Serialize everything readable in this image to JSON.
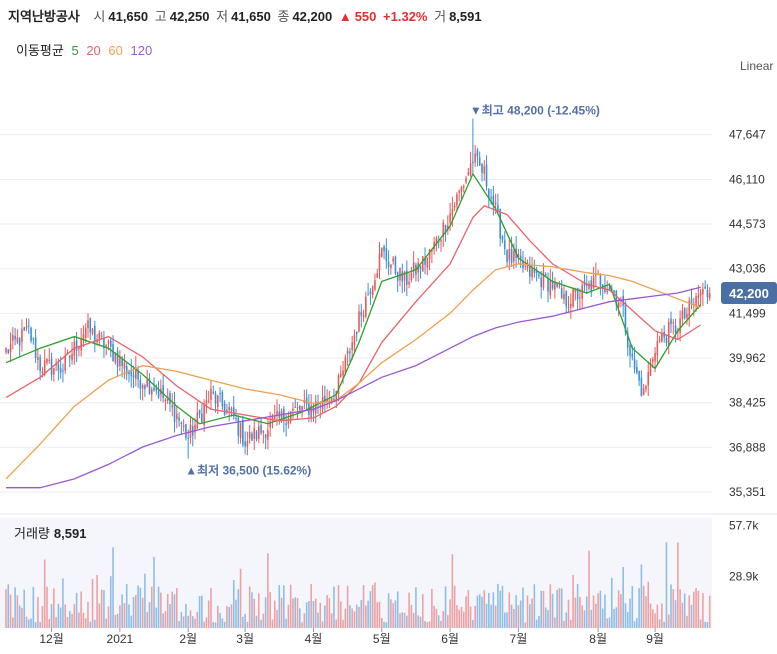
{
  "header": {
    "name": "지역난방공사",
    "open_label": "시",
    "open": "41,650",
    "high_label": "고",
    "high": "42,250",
    "low_label": "저",
    "low": "41,650",
    "close_label": "종",
    "close": "42,200",
    "change_arrow": "▲",
    "change": "550",
    "change_pct": "+1.32%",
    "volume_label": "거",
    "volume": "8,591"
  },
  "ma_legend": {
    "label": "이동평균",
    "periods": [
      {
        "label": "5",
        "color": "#2ca02c"
      },
      {
        "label": "20",
        "color": "#e8636b"
      },
      {
        "label": "60",
        "color": "#f0a050"
      },
      {
        "label": "120",
        "color": "#9b59d0"
      }
    ]
  },
  "scale_label": "Linear",
  "colors": {
    "up": "#e55b5b",
    "down": "#3b8fd6",
    "annotation": "#5470a8",
    "current_badge": "#4a6fa5"
  },
  "chart_data": {
    "type": "candlestick",
    "ylim": [
      34800,
      49600
    ],
    "y_ticks": [
      {
        "value": 47647,
        "label": "47,647"
      },
      {
        "value": 46110,
        "label": "46,110"
      },
      {
        "value": 44573,
        "label": "44,573"
      },
      {
        "value": 43036,
        "label": "43,036"
      },
      {
        "value": 41499,
        "label": "41,499"
      },
      {
        "value": 39962,
        "label": "39,962"
      },
      {
        "value": 38425,
        "label": "38,425"
      },
      {
        "value": 36888,
        "label": "36,888"
      },
      {
        "value": 35351,
        "label": "35,351"
      }
    ],
    "x_ticks": [
      {
        "week": 4,
        "label": "12월"
      },
      {
        "week": 10,
        "label": "2021"
      },
      {
        "week": 16,
        "label": "2월"
      },
      {
        "week": 21,
        "label": "3월"
      },
      {
        "week": 27,
        "label": "4월"
      },
      {
        "week": 33,
        "label": "5월"
      },
      {
        "week": 39,
        "label": "6월"
      },
      {
        "week": 45,
        "label": "7월"
      },
      {
        "week": 52,
        "label": "8월"
      },
      {
        "week": 57,
        "label": "9월"
      }
    ],
    "price_path": [
      [
        0,
        40200
      ],
      [
        2,
        40900
      ],
      [
        3,
        39700
      ],
      [
        5,
        39600
      ],
      [
        7,
        41000
      ],
      [
        9,
        40300
      ],
      [
        11,
        39400
      ],
      [
        13,
        39000
      ],
      [
        15,
        38000
      ],
      [
        16,
        37200
      ],
      [
        18,
        38700
      ],
      [
        20,
        37900
      ],
      [
        21,
        37100
      ],
      [
        23,
        37600
      ],
      [
        25,
        38100
      ],
      [
        27,
        38300
      ],
      [
        29,
        38800
      ],
      [
        30,
        40000
      ],
      [
        31,
        41300
      ],
      [
        33,
        43600
      ],
      [
        35,
        42600
      ],
      [
        37,
        43400
      ],
      [
        38,
        44100
      ],
      [
        40,
        45800
      ],
      [
        41,
        46800
      ],
      [
        42,
        46300
      ],
      [
        43,
        45000
      ],
      [
        44,
        43500
      ],
      [
        46,
        42900
      ],
      [
        48,
        42500
      ],
      [
        49,
        41900
      ],
      [
        51,
        42300
      ],
      [
        52,
        42700
      ],
      [
        53,
        42400
      ],
      [
        54,
        41900
      ],
      [
        55,
        39800
      ],
      [
        56,
        38700
      ],
      [
        57,
        40400
      ],
      [
        58,
        40800
      ],
      [
        59,
        41100
      ],
      [
        60,
        41600
      ],
      [
        61,
        42200
      ]
    ],
    "annotations": {
      "high": {
        "text": "▼최고 48,200 (-12.45%)",
        "week": 41,
        "value": 48200
      },
      "low": {
        "text": "▲최저 36,500 (15.62%)",
        "week": 16,
        "value": 36500
      }
    },
    "current_price": {
      "value": 42200,
      "label": "42,200"
    },
    "moving_averages": [
      {
        "period": "5",
        "color": "#2ca02c",
        "points": [
          [
            0,
            39800
          ],
          [
            3,
            40300
          ],
          [
            6,
            40700
          ],
          [
            9,
            40300
          ],
          [
            12,
            39400
          ],
          [
            15,
            38300
          ],
          [
            17,
            37700
          ],
          [
            20,
            38000
          ],
          [
            23,
            37700
          ],
          [
            26,
            38100
          ],
          [
            29,
            38700
          ],
          [
            31,
            40500
          ],
          [
            33,
            42600
          ],
          [
            36,
            43000
          ],
          [
            39,
            44500
          ],
          [
            41,
            46300
          ],
          [
            43,
            45100
          ],
          [
            45,
            43400
          ],
          [
            48,
            42600
          ],
          [
            51,
            42200
          ],
          [
            53,
            42500
          ],
          [
            55,
            40300
          ],
          [
            57,
            39600
          ],
          [
            59,
            40900
          ],
          [
            61,
            41800
          ]
        ]
      },
      {
        "period": "20",
        "color": "#e8636b",
        "points": [
          [
            0,
            38600
          ],
          [
            3,
            39300
          ],
          [
            6,
            40300
          ],
          [
            9,
            40700
          ],
          [
            12,
            40000
          ],
          [
            15,
            39000
          ],
          [
            18,
            38200
          ],
          [
            21,
            38000
          ],
          [
            24,
            37800
          ],
          [
            27,
            37900
          ],
          [
            29,
            38300
          ],
          [
            31,
            39100
          ],
          [
            33,
            40500
          ],
          [
            36,
            41900
          ],
          [
            39,
            43200
          ],
          [
            41,
            44800
          ],
          [
            42,
            45200
          ],
          [
            44,
            44900
          ],
          [
            46,
            44000
          ],
          [
            48,
            43200
          ],
          [
            51,
            42500
          ],
          [
            53,
            42300
          ],
          [
            55,
            41600
          ],
          [
            57,
            40900
          ],
          [
            59,
            40600
          ],
          [
            61,
            41100
          ]
        ]
      },
      {
        "period": "60",
        "color": "#f0a050",
        "points": [
          [
            0,
            35800
          ],
          [
            3,
            37000
          ],
          [
            6,
            38300
          ],
          [
            9,
            39200
          ],
          [
            12,
            39700
          ],
          [
            15,
            39500
          ],
          [
            18,
            39200
          ],
          [
            21,
            38900
          ],
          [
            24,
            38700
          ],
          [
            27,
            38400
          ],
          [
            29,
            38500
          ],
          [
            31,
            39100
          ],
          [
            33,
            39800
          ],
          [
            36,
            40600
          ],
          [
            39,
            41500
          ],
          [
            41,
            42300
          ],
          [
            43,
            43000
          ],
          [
            45,
            43200
          ],
          [
            48,
            43100
          ],
          [
            51,
            42900
          ],
          [
            53,
            42800
          ],
          [
            55,
            42600
          ],
          [
            57,
            42300
          ],
          [
            59,
            42000
          ],
          [
            61,
            41700
          ]
        ]
      },
      {
        "period": "120",
        "color": "#9b59d0",
        "points": [
          [
            0,
            35500
          ],
          [
            3,
            35500
          ],
          [
            6,
            35800
          ],
          [
            9,
            36300
          ],
          [
            12,
            36900
          ],
          [
            15,
            37300
          ],
          [
            18,
            37600
          ],
          [
            21,
            37800
          ],
          [
            24,
            38000
          ],
          [
            27,
            38200
          ],
          [
            29,
            38500
          ],
          [
            31,
            38900
          ],
          [
            33,
            39300
          ],
          [
            36,
            39700
          ],
          [
            39,
            40300
          ],
          [
            41,
            40700
          ],
          [
            43,
            41000
          ],
          [
            45,
            41200
          ],
          [
            48,
            41400
          ],
          [
            51,
            41700
          ],
          [
            53,
            41900
          ],
          [
            55,
            42000
          ],
          [
            57,
            42100
          ],
          [
            59,
            42200
          ],
          [
            61,
            42400
          ]
        ]
      }
    ],
    "volume": {
      "title": "거래량",
      "value": "8,591",
      "ylim": [
        0,
        62000
      ],
      "y_ticks": [
        {
          "value": 57700,
          "label": "57.7k"
        },
        {
          "value": 28900,
          "label": "28.9k"
        }
      ]
    }
  }
}
